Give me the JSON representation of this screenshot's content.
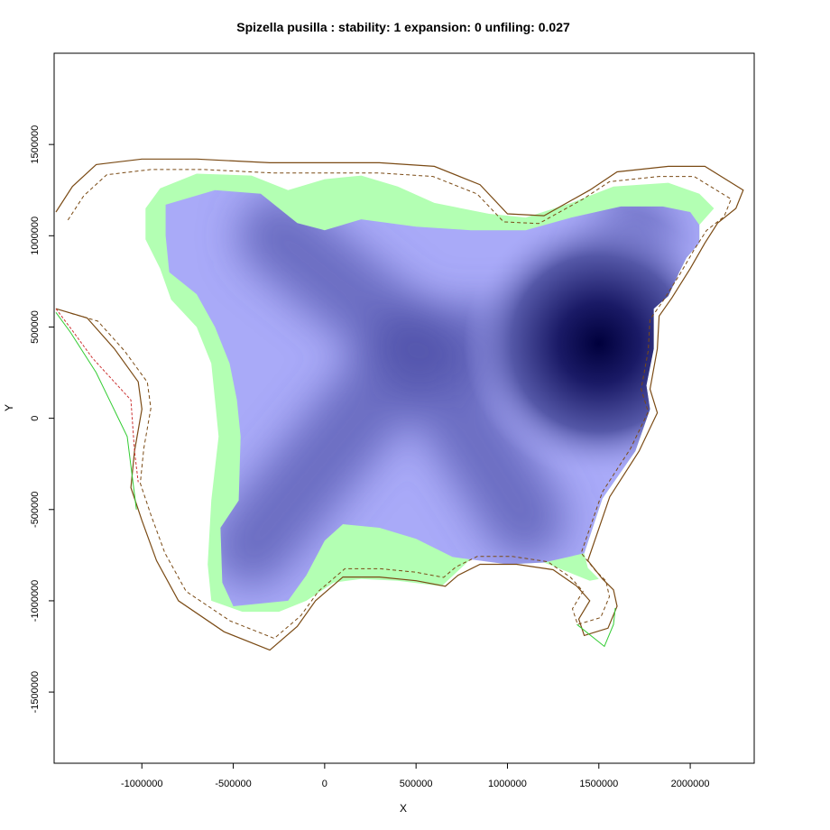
{
  "chart_data": {
    "type": "heatmap",
    "title": "Spizella pusilla : stability: 1 expansion: 0 unfiling: 0.027",
    "xlabel": "X",
    "ylabel": "Y",
    "xlim": [
      -1480000,
      2350000
    ],
    "ylim": [
      -1890000,
      2000000
    ],
    "x_ticks": [
      -1000000,
      -500000,
      0,
      500000,
      1000000,
      1500000,
      2000000
    ],
    "x_tick_labels": [
      "-1000000",
      "-500000",
      "0",
      "500000",
      "1000000",
      "1500000",
      "2000000"
    ],
    "y_ticks": [
      -1500000,
      -1000000,
      -500000,
      0,
      500000,
      1000000,
      1500000
    ],
    "y_tick_labels": [
      "-1500000",
      "-1000000",
      "-500000",
      "0",
      "500000",
      "1000000",
      "1500000"
    ],
    "grid": false,
    "legend": "none",
    "colors": {
      "stability_area": "#b3ffb3",
      "density_low": "#a9aaf8",
      "density_high": "#00003c",
      "native_range_line": "#33cc33",
      "invaded_range_line": "#cc3333",
      "combined_range_line": "#7a4a14"
    },
    "density_peak": [
      1500000,
      410000
    ],
    "density_ridges": [
      {
        "from": [
          500000,
          400000
        ],
        "to": [
          1450000,
          410000
        ]
      },
      {
        "from": [
          500000,
          400000
        ],
        "to": [
          -250000,
          1000000
        ]
      },
      {
        "from": [
          500000,
          400000
        ],
        "to": [
          -400000,
          -700000
        ]
      },
      {
        "from": [
          500000,
          400000
        ],
        "to": [
          1100000,
          -550000
        ]
      },
      {
        "from": [
          1450000,
          410000
        ],
        "to": [
          1700000,
          1000000
        ]
      }
    ],
    "density_region": [
      [
        -870000,
        1170000
      ],
      [
        -600000,
        1250000
      ],
      [
        -350000,
        1230000
      ],
      [
        -150000,
        1070000
      ],
      [
        0,
        1030000
      ],
      [
        200000,
        1090000
      ],
      [
        500000,
        1050000
      ],
      [
        800000,
        1030000
      ],
      [
        1100000,
        1030000
      ],
      [
        1350000,
        1100000
      ],
      [
        1620000,
        1160000
      ],
      [
        1850000,
        1160000
      ],
      [
        2000000,
        1130000
      ],
      [
        2050000,
        1060000
      ],
      [
        2050000,
        960000
      ],
      [
        1980000,
        880000
      ],
      [
        1940000,
        800000
      ],
      [
        1880000,
        670000
      ],
      [
        1800000,
        600000
      ],
      [
        1800000,
        380000
      ],
      [
        1760000,
        180000
      ],
      [
        1780000,
        50000
      ],
      [
        1700000,
        -180000
      ],
      [
        1520000,
        -440000
      ],
      [
        1420000,
        -740000
      ],
      [
        1200000,
        -790000
      ],
      [
        1000000,
        -800000
      ],
      [
        700000,
        -760000
      ],
      [
        500000,
        -660000
      ],
      [
        300000,
        -600000
      ],
      [
        100000,
        -580000
      ],
      [
        0,
        -670000
      ],
      [
        -100000,
        -860000
      ],
      [
        -200000,
        -1000000
      ],
      [
        -500000,
        -1030000
      ],
      [
        -560000,
        -900000
      ],
      [
        -570000,
        -600000
      ],
      [
        -470000,
        -450000
      ],
      [
        -460000,
        -100000
      ],
      [
        -480000,
        100000
      ],
      [
        -520000,
        300000
      ],
      [
        -600000,
        500000
      ],
      [
        -700000,
        680000
      ],
      [
        -850000,
        800000
      ],
      [
        -870000,
        1000000
      ]
    ],
    "stability_region": [
      [
        -980000,
        1150000
      ],
      [
        -900000,
        1260000
      ],
      [
        -700000,
        1340000
      ],
      [
        -400000,
        1330000
      ],
      [
        -200000,
        1250000
      ],
      [
        0,
        1310000
      ],
      [
        200000,
        1330000
      ],
      [
        400000,
        1270000
      ],
      [
        600000,
        1180000
      ],
      [
        900000,
        1120000
      ],
      [
        1100000,
        1100000
      ],
      [
        1350000,
        1180000
      ],
      [
        1580000,
        1270000
      ],
      [
        1880000,
        1290000
      ],
      [
        2050000,
        1230000
      ],
      [
        2130000,
        1150000
      ],
      [
        2050000,
        1060000
      ],
      [
        2050000,
        960000
      ],
      [
        1980000,
        880000
      ],
      [
        1940000,
        800000
      ],
      [
        1880000,
        670000
      ],
      [
        1800000,
        600000
      ],
      [
        1800000,
        380000
      ],
      [
        1760000,
        180000
      ],
      [
        1780000,
        50000
      ],
      [
        1700000,
        -180000
      ],
      [
        1520000,
        -440000
      ],
      [
        1420000,
        -740000
      ],
      [
        1440000,
        -820000
      ],
      [
        1500000,
        -880000
      ],
      [
        1450000,
        -890000
      ],
      [
        1300000,
        -830000
      ],
      [
        1200000,
        -790000
      ],
      [
        1000000,
        -800000
      ],
      [
        800000,
        -770000
      ],
      [
        640000,
        -920000
      ],
      [
        400000,
        -890000
      ],
      [
        200000,
        -880000
      ],
      [
        50000,
        -900000
      ],
      [
        -100000,
        -1000000
      ],
      [
        -250000,
        -1060000
      ],
      [
        -450000,
        -1060000
      ],
      [
        -620000,
        -1000000
      ],
      [
        -640000,
        -800000
      ],
      [
        -620000,
        -450000
      ],
      [
        -580000,
        -100000
      ],
      [
        -600000,
        100000
      ],
      [
        -620000,
        300000
      ],
      [
        -700000,
        500000
      ],
      [
        -840000,
        650000
      ],
      [
        -900000,
        820000
      ],
      [
        -980000,
        980000
      ]
    ],
    "combined_outline": [
      [
        -1470000,
        1130000
      ],
      [
        -1380000,
        1270000
      ],
      [
        -1250000,
        1390000
      ],
      [
        -1000000,
        1420000
      ],
      [
        -700000,
        1420000
      ],
      [
        -300000,
        1400000
      ],
      [
        0,
        1400000
      ],
      [
        300000,
        1400000
      ],
      [
        600000,
        1380000
      ],
      [
        850000,
        1280000
      ],
      [
        1000000,
        1120000
      ],
      [
        1200000,
        1110000
      ],
      [
        1450000,
        1250000
      ],
      [
        1600000,
        1350000
      ],
      [
        1880000,
        1380000
      ],
      [
        2080000,
        1380000
      ],
      [
        2290000,
        1250000
      ],
      [
        2250000,
        1150000
      ],
      [
        2150000,
        1070000
      ],
      [
        2080000,
        960000
      ],
      [
        2000000,
        820000
      ],
      [
        1900000,
        660000
      ],
      [
        1830000,
        560000
      ],
      [
        1820000,
        380000
      ],
      [
        1780000,
        160000
      ],
      [
        1820000,
        30000
      ],
      [
        1720000,
        -180000
      ],
      [
        1560000,
        -430000
      ],
      [
        1440000,
        -780000
      ],
      [
        1520000,
        -880000
      ],
      [
        1580000,
        -940000
      ],
      [
        1600000,
        -1030000
      ],
      [
        1550000,
        -1150000
      ],
      [
        1420000,
        -1190000
      ],
      [
        1390000,
        -1100000
      ],
      [
        1450000,
        -1000000
      ],
      [
        1380000,
        -920000
      ],
      [
        1250000,
        -830000
      ],
      [
        1050000,
        -800000
      ],
      [
        850000,
        -800000
      ],
      [
        730000,
        -860000
      ],
      [
        660000,
        -920000
      ],
      [
        500000,
        -890000
      ],
      [
        300000,
        -870000
      ],
      [
        100000,
        -870000
      ],
      [
        -50000,
        -1000000
      ],
      [
        -150000,
        -1140000
      ],
      [
        -300000,
        -1270000
      ],
      [
        -550000,
        -1170000
      ],
      [
        -800000,
        -1000000
      ],
      [
        -920000,
        -780000
      ],
      [
        -1000000,
        -560000
      ],
      [
        -1060000,
        -380000
      ],
      [
        -1040000,
        -180000
      ],
      [
        -1000000,
        50000
      ],
      [
        -1020000,
        200000
      ],
      [
        -1150000,
        380000
      ],
      [
        -1300000,
        550000
      ],
      [
        -1470000,
        600000
      ]
    ],
    "series": [
      {
        "values": [
          [
            -1470000,
            580000
          ],
          [
            -1390000,
            470000
          ],
          [
            -1250000,
            250000
          ],
          [
            -1080000,
            -100000
          ],
          [
            -1030000,
            -500000
          ]
        ]
      },
      {
        "values": [
          [
            -1470000,
            600000
          ],
          [
            -1380000,
            480000
          ],
          [
            -1270000,
            330000
          ],
          [
            -1060000,
            100000
          ],
          [
            -1040000,
            -180000
          ],
          [
            -1020000,
            -350000
          ]
        ]
      },
      {
        "values": [
          [
            1380000,
            -1130000
          ],
          [
            1530000,
            -1250000
          ],
          [
            1580000,
            -1130000
          ],
          [
            1590000,
            -1040000
          ]
        ]
      }
    ]
  }
}
